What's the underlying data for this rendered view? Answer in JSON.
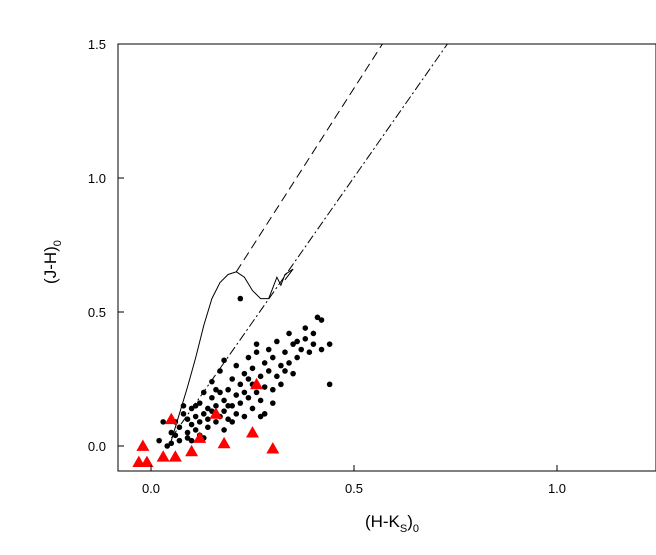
{
  "chart_data": {
    "type": "scatter",
    "title": "",
    "xlabel": "(H-K",
    "xlabel_sub": "S",
    "xlabel_suffix": ")",
    "xlabel_sub2": "0",
    "ylabel": "(J-H)",
    "ylabel_sub": "0",
    "xlim": [
      -0.17,
      1.25
    ],
    "ylim": [
      -0.1,
      1.5
    ],
    "xticks": [
      0.0,
      0.5,
      1.0
    ],
    "xtick_labels": [
      "0.0",
      "0.5",
      "1.0"
    ],
    "yticks": [
      0.0,
      0.5,
      1.0,
      1.5
    ],
    "ytick_labels": [
      "0.0",
      "0.5",
      "1.0",
      "1.5"
    ],
    "grid": false,
    "series": [
      {
        "marker": "circle",
        "color": "#000000",
        "points": [
          [
            0.02,
            0.02
          ],
          [
            0.04,
            0.0
          ],
          [
            0.05,
            0.05
          ],
          [
            0.06,
            0.09
          ],
          [
            0.07,
            0.07
          ],
          [
            0.08,
            0.12
          ],
          [
            0.09,
            0.05
          ],
          [
            0.09,
            0.1
          ],
          [
            0.1,
            0.08
          ],
          [
            0.1,
            0.14
          ],
          [
            0.11,
            0.11
          ],
          [
            0.11,
            0.06
          ],
          [
            0.12,
            0.09
          ],
          [
            0.12,
            0.16
          ],
          [
            0.13,
            0.12
          ],
          [
            0.13,
            0.2
          ],
          [
            0.14,
            0.07
          ],
          [
            0.14,
            0.1
          ],
          [
            0.15,
            0.13
          ],
          [
            0.15,
            0.18
          ],
          [
            0.15,
            0.24
          ],
          [
            0.16,
            0.09
          ],
          [
            0.16,
            0.15
          ],
          [
            0.17,
            0.11
          ],
          [
            0.17,
            0.2
          ],
          [
            0.17,
            0.28
          ],
          [
            0.18,
            0.13
          ],
          [
            0.18,
            0.17
          ],
          [
            0.18,
            0.32
          ],
          [
            0.19,
            0.1
          ],
          [
            0.19,
            0.21
          ],
          [
            0.2,
            0.15
          ],
          [
            0.2,
            0.25
          ],
          [
            0.21,
            0.12
          ],
          [
            0.21,
            0.19
          ],
          [
            0.21,
            0.3
          ],
          [
            0.22,
            0.16
          ],
          [
            0.22,
            0.23
          ],
          [
            0.22,
            0.55
          ],
          [
            0.23,
            0.11
          ],
          [
            0.23,
            0.2
          ],
          [
            0.23,
            0.27
          ],
          [
            0.24,
            0.18
          ],
          [
            0.24,
            0.33
          ],
          [
            0.25,
            0.14
          ],
          [
            0.25,
            0.23
          ],
          [
            0.25,
            0.29
          ],
          [
            0.26,
            0.2
          ],
          [
            0.26,
            0.35
          ],
          [
            0.27,
            0.17
          ],
          [
            0.27,
            0.26
          ],
          [
            0.28,
            0.22
          ],
          [
            0.28,
            0.31
          ],
          [
            0.28,
            0.12
          ],
          [
            0.29,
            0.28
          ],
          [
            0.29,
            0.36
          ],
          [
            0.3,
            0.21
          ],
          [
            0.3,
            0.33
          ],
          [
            0.31,
            0.26
          ],
          [
            0.31,
            0.39
          ],
          [
            0.32,
            0.3
          ],
          [
            0.32,
            0.23
          ],
          [
            0.33,
            0.35
          ],
          [
            0.34,
            0.31
          ],
          [
            0.34,
            0.42
          ],
          [
            0.35,
            0.38
          ],
          [
            0.36,
            0.33
          ],
          [
            0.36,
            0.39
          ],
          [
            0.37,
            0.36
          ],
          [
            0.38,
            0.4
          ],
          [
            0.38,
            0.44
          ],
          [
            0.39,
            0.35
          ],
          [
            0.4,
            0.42
          ],
          [
            0.4,
            0.38
          ],
          [
            0.41,
            0.48
          ],
          [
            0.42,
            0.47
          ],
          [
            0.42,
            0.36
          ],
          [
            0.44,
            0.38
          ],
          [
            0.44,
            0.23
          ],
          [
            0.08,
            0.15
          ],
          [
            0.05,
            0.01
          ],
          [
            0.06,
            0.04
          ],
          [
            0.1,
            0.02
          ],
          [
            0.12,
            0.04
          ],
          [
            0.03,
            0.09
          ],
          [
            0.14,
            0.14
          ],
          [
            0.16,
            0.21
          ],
          [
            0.19,
            0.15
          ],
          [
            0.2,
            0.09
          ],
          [
            0.24,
            0.25
          ],
          [
            0.26,
            0.38
          ],
          [
            0.27,
            0.11
          ],
          [
            0.3,
            0.16
          ],
          [
            0.33,
            0.28
          ],
          [
            0.35,
            0.27
          ],
          [
            0.13,
            0.03
          ],
          [
            0.09,
            0.03
          ],
          [
            0.07,
            0.02
          ],
          [
            0.11,
            0.15
          ],
          [
            0.18,
            0.06
          ]
        ]
      },
      {
        "marker": "triangle",
        "color": "#ff0000",
        "points": [
          [
            -0.02,
            0.0
          ],
          [
            -0.03,
            -0.06
          ],
          [
            -0.01,
            -0.06
          ],
          [
            0.03,
            -0.04
          ],
          [
            0.06,
            -0.04
          ],
          [
            0.1,
            -0.02
          ],
          [
            0.05,
            0.1
          ],
          [
            0.12,
            0.03
          ],
          [
            0.16,
            0.12
          ],
          [
            0.18,
            0.01
          ],
          [
            0.25,
            0.05
          ],
          [
            0.26,
            0.23
          ],
          [
            0.3,
            -0.01
          ]
        ]
      }
    ],
    "lines": [
      {
        "name": "",
        "style": "solid",
        "points": [
          [
            0.05,
            0.02
          ],
          [
            0.07,
            0.12
          ],
          [
            0.09,
            0.22
          ],
          [
            0.11,
            0.33
          ],
          [
            0.13,
            0.45
          ],
          [
            0.15,
            0.55
          ],
          [
            0.17,
            0.61
          ],
          [
            0.19,
            0.64
          ],
          [
            0.21,
            0.65
          ],
          [
            0.23,
            0.63
          ],
          [
            0.25,
            0.58
          ],
          [
            0.27,
            0.55
          ],
          [
            0.29,
            0.55
          ],
          [
            0.3,
            0.59
          ],
          [
            0.31,
            0.63
          ],
          [
            0.32,
            0.6
          ],
          [
            0.33,
            0.64
          ],
          [
            0.34,
            0.65
          ],
          [
            0.35,
            0.66
          ],
          [
            0.33,
            0.62
          ]
        ]
      },
      {
        "name": "",
        "style": "dashed",
        "points": [
          [
            0.21,
            0.65
          ],
          [
            0.57,
            1.5
          ]
        ]
      },
      {
        "name": "",
        "style": "dashdot",
        "points": [
          [
            0.05,
            0.03
          ],
          [
            0.73,
            1.5
          ]
        ]
      }
    ]
  }
}
